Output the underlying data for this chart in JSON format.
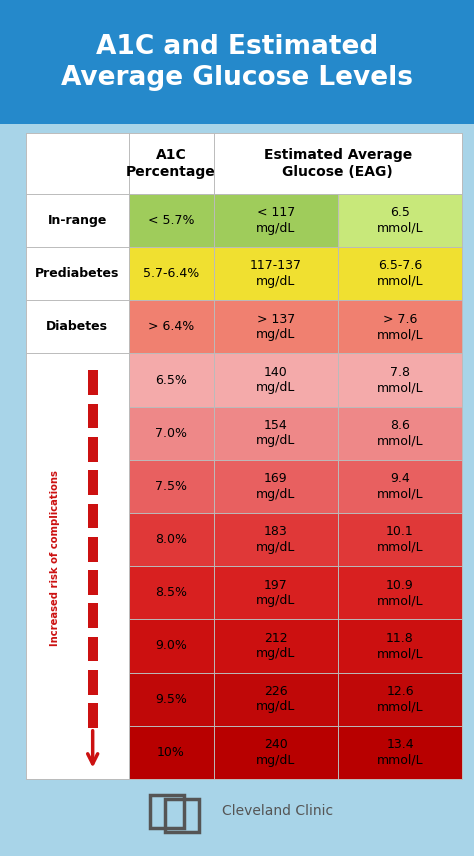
{
  "title": "A1C and Estimated\nAverage Glucose Levels",
  "title_color": "#FFFFFF",
  "title_bg": "#2589CB",
  "background_color": "#A8D4E8",
  "header_row_cols": [
    "",
    "A1C\nPercentage",
    "Estimated Average\nGlucose (EAG)"
  ],
  "rows": [
    {
      "label": "In-range",
      "a1c": "< 5.7%",
      "mgdl": "< 117\nmg/dL",
      "mmol": "6.5\nmmol/L",
      "label_bold": true,
      "cell_colors": [
        "#FFFFFF",
        "#9FCC5B",
        "#9FCC5B",
        "#C8E87A"
      ]
    },
    {
      "label": "Prediabetes",
      "a1c": "5.7-6.4%",
      "mgdl": "117-137\nmg/dL",
      "mmol": "6.5-7.6\nmmol/L",
      "label_bold": true,
      "cell_colors": [
        "#FFFFFF",
        "#F0E030",
        "#F0E030",
        "#F0E030"
      ]
    },
    {
      "label": "Diabetes",
      "a1c": "> 6.4%",
      "mgdl": "> 137\nmg/dL",
      "mmol": "> 7.6\nmmol/L",
      "label_bold": true,
      "cell_colors": [
        "#FFFFFF",
        "#F08070",
        "#F08070",
        "#F08070"
      ]
    },
    {
      "label": "",
      "a1c": "6.5%",
      "mgdl": "140\nmg/dL",
      "mmol": "7.8\nmmol/L",
      "label_bold": false,
      "cell_colors": [
        "#FFFFFF",
        "#F4AAAA",
        "#F4AAAA",
        "#F4AAAA"
      ]
    },
    {
      "label": "",
      "a1c": "7.0%",
      "mgdl": "154\nmg/dL",
      "mmol": "8.6\nmmol/L",
      "label_bold": false,
      "cell_colors": [
        "#FFFFFF",
        "#EE8888",
        "#EE8888",
        "#EE8888"
      ]
    },
    {
      "label": "",
      "a1c": "7.5%",
      "mgdl": "169\nmg/dL",
      "mmol": "9.4\nmmol/L",
      "label_bold": false,
      "cell_colors": [
        "#FFFFFF",
        "#E86060",
        "#E86060",
        "#E86060"
      ]
    },
    {
      "label": "",
      "a1c": "8.0%",
      "mgdl": "183\nmg/dL",
      "mmol": "10.1\nmmol/L",
      "label_bold": false,
      "cell_colors": [
        "#FFFFFF",
        "#E03838",
        "#E03838",
        "#E03838"
      ]
    },
    {
      "label": "",
      "a1c": "8.5%",
      "mgdl": "197\nmg/dL",
      "mmol": "10.9\nmmol/L",
      "label_bold": false,
      "cell_colors": [
        "#FFFFFF",
        "#D82020",
        "#D82020",
        "#D82020"
      ]
    },
    {
      "label": "",
      "a1c": "9.0%",
      "mgdl": "212\nmg/dL",
      "mmol": "11.8\nmmol/L",
      "label_bold": false,
      "cell_colors": [
        "#FFFFFF",
        "#CC1010",
        "#CC1010",
        "#CC1010"
      ]
    },
    {
      "label": "",
      "a1c": "9.5%",
      "mgdl": "226\nmg/dL",
      "mmol": "12.6\nmmol/L",
      "label_bold": false,
      "cell_colors": [
        "#FFFFFF",
        "#C00808",
        "#C00808",
        "#C00808"
      ]
    },
    {
      "label": "",
      "a1c": "10%",
      "mgdl": "240\nmg/dL",
      "mmol": "13.4\nmmol/L",
      "label_bold": false,
      "cell_colors": [
        "#FFFFFF",
        "#B80000",
        "#B80000",
        "#B80000"
      ]
    }
  ],
  "arrow_color": "#CC1111",
  "arrow_text": "Increased risk of complications",
  "footer_text": "Cleveland Clinic",
  "logo_color": "#555555",
  "figsize": [
    4.74,
    8.56
  ],
  "dpi": 100
}
